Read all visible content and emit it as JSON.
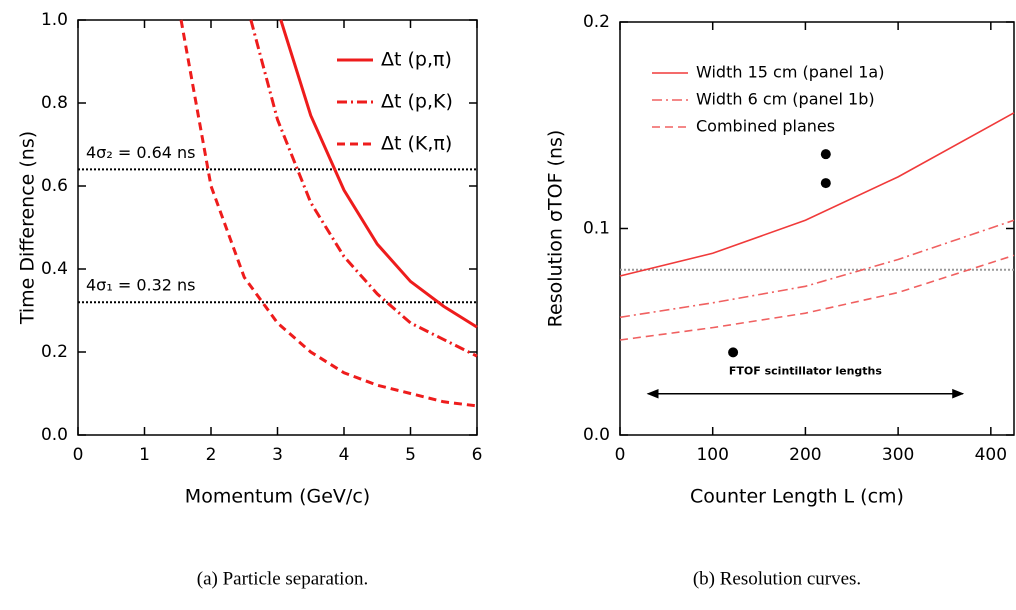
{
  "chart_data": [
    {
      "type": "line",
      "xlabel": "Momentum (GeV/c)",
      "ylabel": "Time Difference (ns)",
      "caption": "(a) Particle separation.",
      "xlim": [
        0,
        6
      ],
      "ylim": [
        0,
        1
      ],
      "xticks": [
        0,
        1,
        2,
        3,
        4,
        5,
        6
      ],
      "yticks": [
        {
          "value": 0,
          "label": "0.0"
        },
        0.2,
        0.4,
        0.6,
        0.8,
        {
          "value": 1,
          "label": "1.0"
        }
      ],
      "legend": "upper right",
      "series": [
        {
          "name": "Δt (p,π)",
          "color": "#ee1c1c",
          "linestyle": "solid",
          "x": [
            3.05,
            3.5,
            4,
            4.5,
            5,
            5.5,
            6
          ],
          "values": [
            1.0,
            0.77,
            0.59,
            0.46,
            0.37,
            0.31,
            0.26
          ]
        },
        {
          "name": "Δt (p,K)",
          "color": "#ee1c1c",
          "linestyle": "dashdot",
          "x": [
            2.6,
            3,
            3.5,
            4,
            4.5,
            5,
            5.5,
            6
          ],
          "values": [
            1.0,
            0.76,
            0.56,
            0.43,
            0.34,
            0.27,
            0.23,
            0.19
          ]
        },
        {
          "name": "Δt (K,π)",
          "color": "#ee1c1c",
          "linestyle": "dashed",
          "x": [
            1.55,
            2,
            2.5,
            3,
            3.5,
            4,
            4.5,
            5,
            5.5,
            6
          ],
          "values": [
            1.0,
            0.6,
            0.38,
            0.27,
            0.2,
            0.15,
            0.12,
            0.1,
            0.08,
            0.07
          ]
        }
      ],
      "hlines": [
        {
          "y": 0.64,
          "label": "4σ₂ = 0.64 ns",
          "color": "#000000"
        },
        {
          "y": 0.32,
          "label": "4σ₁ = 0.32 ns",
          "color": "#000000"
        }
      ]
    },
    {
      "type": "line",
      "xlabel": "Counter Length L (cm)",
      "ylabel": "Resolution σTOF (ns)",
      "caption": "(b) Resolution curves.",
      "xlim": [
        0,
        425
      ],
      "ylim": [
        0,
        0.2
      ],
      "xticks": [
        0,
        100,
        200,
        300,
        400
      ],
      "yticks": [
        {
          "value": 0,
          "label": "0.0"
        },
        0.1,
        0.2
      ],
      "legend": "upper left",
      "series": [
        {
          "name": "Width 15 cm (panel 1a)",
          "color": "#f03a3a",
          "linestyle": "solid",
          "x": [
            0,
            100,
            200,
            300,
            425
          ],
          "values": [
            0.077,
            0.088,
            0.104,
            0.125,
            0.156
          ]
        },
        {
          "name": "Width 6 cm (panel 1b)",
          "color": "#f06060",
          "linestyle": "dashdot",
          "x": [
            0,
            100,
            200,
            300,
            425
          ],
          "values": [
            0.057,
            0.064,
            0.072,
            0.085,
            0.104
          ]
        },
        {
          "name": "Combined planes",
          "color": "#f06060",
          "linestyle": "dashed",
          "x": [
            0,
            100,
            200,
            300,
            425
          ],
          "values": [
            0.046,
            0.052,
            0.059,
            0.069,
            0.087
          ]
        },
        {
          "type": "scatter",
          "color": "#000000",
          "x": [
            222,
            222,
            122
          ],
          "values": [
            0.136,
            0.122,
            0.04
          ]
        }
      ],
      "hlines": [
        {
          "y": 0.08,
          "color": "#999999"
        }
      ],
      "arrows": [
        {
          "x": [
            30,
            370
          ],
          "y": 0.02,
          "label": "FTOF scintillator lengths"
        }
      ]
    }
  ]
}
